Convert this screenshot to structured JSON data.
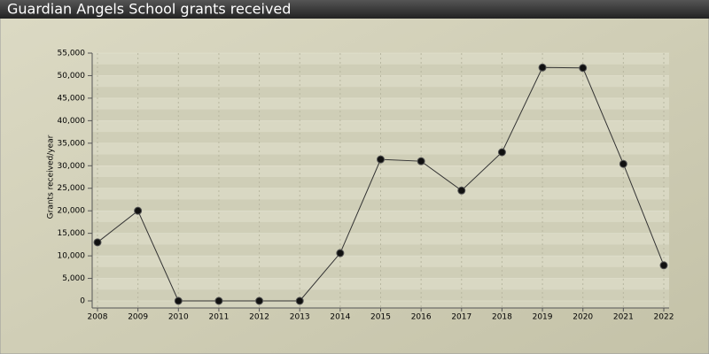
{
  "chart_data": {
    "type": "line",
    "title": "Guardian Angels School grants received",
    "y_label": "Grants received/year",
    "categories": [
      "2008",
      "2009",
      "2010",
      "2011",
      "2012",
      "2013",
      "2014",
      "2015",
      "2016",
      "2017",
      "2018",
      "2019",
      "2020",
      "2021",
      "2022"
    ],
    "values": [
      13000,
      20000,
      0,
      0,
      0,
      0,
      10600,
      31400,
      31000,
      24500,
      33000,
      51800,
      51700,
      30400,
      7900
    ],
    "color": "#333333",
    "ylim": [
      0,
      55000
    ],
    "yticks": [
      0,
      {
        "value": 5000,
        "label": "5,000"
      },
      {
        "value": 10000,
        "label": "10,000"
      },
      {
        "value": 15000,
        "label": "15,000"
      },
      {
        "value": 20000,
        "label": "20,000"
      },
      {
        "value": 25000,
        "label": "25,000"
      },
      {
        "value": 30000,
        "label": "30,000"
      },
      {
        "value": 35000,
        "label": "35,000"
      },
      {
        "value": 40000,
        "label": "40,000"
      },
      {
        "value": 45000,
        "label": "45,000"
      },
      {
        "value": 50000,
        "label": "50,000"
      },
      {
        "value": 55000,
        "label": "55,000"
      }
    ],
    "grid": true
  }
}
